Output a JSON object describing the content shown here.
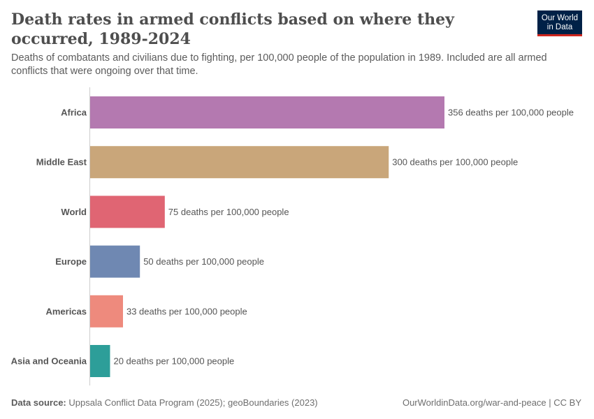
{
  "header": {
    "title": "Death rates in armed conflicts based on where they occurred, 1989-2024",
    "subtitle": "Deaths of combatants and civilians due to fighting, per 100,000 people of the population in 1989. Included are all armed conflicts that were ongoing over that time.",
    "logo": "Our World in Data"
  },
  "footer": {
    "source_label": "Data source:",
    "source": "Uppsala Conflict Data Program (2025); geoBoundaries (2023)",
    "url": "OurWorldinData.org/war-and-peace | CC BY"
  },
  "chart_data": {
    "type": "bar",
    "orientation": "horizontal",
    "categories": [
      "Africa",
      "Middle East",
      "World",
      "Europe",
      "Americas",
      "Asia and Oceania"
    ],
    "values": [
      356,
      300,
      75,
      50,
      33,
      20
    ],
    "labels": [
      "356 deaths per 100,000 people",
      "300 deaths per 100,000 people",
      "75 deaths per 100,000 people",
      "50 deaths per 100,000 people",
      "33 deaths per 100,000 people",
      "20 deaths per 100,000 people"
    ],
    "colors": [
      "#b479b0",
      "#c9a67a",
      "#e06573",
      "#6f88b2",
      "#ee8a7d",
      "#2d9e99"
    ],
    "xlim": [
      0,
      356
    ],
    "grid": false
  }
}
